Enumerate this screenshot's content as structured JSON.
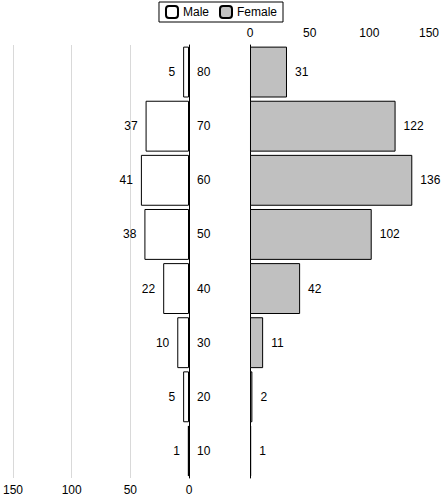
{
  "chart_data": {
    "type": "bar",
    "orientation": "horizontal",
    "categories": [
      "10",
      "20",
      "30",
      "40",
      "50",
      "60",
      "70",
      "80"
    ],
    "series": [
      {
        "name": "Male",
        "color": "#ffffff",
        "values": [
          1,
          5,
          10,
          22,
          38,
          41,
          37,
          5
        ]
      },
      {
        "name": "Female",
        "color": "#c0c0c0",
        "values": [
          1,
          2,
          11,
          42,
          102,
          136,
          122,
          31
        ]
      }
    ],
    "xlim": [
      0,
      150
    ],
    "xticks": [
      0,
      50,
      100,
      150
    ],
    "grid": true,
    "legend": "top",
    "data_labels": true
  }
}
